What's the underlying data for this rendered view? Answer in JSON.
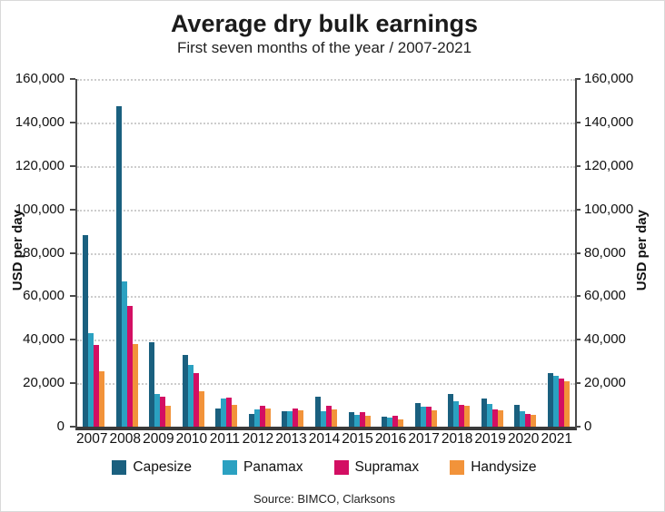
{
  "title": "Average dry bulk earnings",
  "subtitle": "First seven months of the year / 2007-2021",
  "source": "Source: BIMCO, Clarksons",
  "y_axis": {
    "label": "USD per day",
    "ticks": [
      "160,000",
      "140,000",
      "120,000",
      "100,000",
      "80,000",
      "60,000",
      "40,000",
      "20,000",
      "0"
    ]
  },
  "colors": {
    "capesize": "#1a607f",
    "panamax": "#2ba1c1",
    "supramax": "#d30f63",
    "handysize": "#f2933a",
    "axis": "#4a4a4a",
    "gridline": "#cdcdcd"
  },
  "chart_data": {
    "type": "bar",
    "title": "Average dry bulk earnings",
    "subtitle": "First seven months of the year / 2007-2021",
    "xlabel": "",
    "ylabel": "USD per day",
    "ylim": [
      0,
      160000
    ],
    "ytick_step": 20000,
    "grid": "horizontal-dotted",
    "legend_position": "bottom",
    "categories": [
      "2007",
      "2008",
      "2009",
      "2010",
      "2011",
      "2012",
      "2013",
      "2014",
      "2015",
      "2016",
      "2017",
      "2018",
      "2019",
      "2020",
      "2021"
    ],
    "series": [
      {
        "name": "Capesize",
        "color": "#1a607f",
        "values": [
          88000,
          147500,
          39000,
          33000,
          8500,
          6000,
          7000,
          14000,
          6500,
          4500,
          11000,
          15000,
          13000,
          10000,
          24500
        ]
      },
      {
        "name": "Panamax",
        "color": "#2ba1c1",
        "values": [
          43000,
          67000,
          15000,
          28500,
          13000,
          8000,
          7000,
          7000,
          5500,
          4000,
          9000,
          11500,
          10500,
          7000,
          23500
        ]
      },
      {
        "name": "Supramax",
        "color": "#d30f63",
        "values": [
          37500,
          55500,
          14000,
          24500,
          13500,
          9500,
          8500,
          9500,
          6500,
          5000,
          9000,
          10000,
          8000,
          6000,
          22000
        ]
      },
      {
        "name": "Handysize",
        "color": "#f2933a",
        "values": [
          25500,
          38000,
          9500,
          16500,
          10000,
          8500,
          7500,
          8000,
          5000,
          3500,
          7500,
          9500,
          7500,
          5500,
          21000
        ]
      }
    ]
  }
}
